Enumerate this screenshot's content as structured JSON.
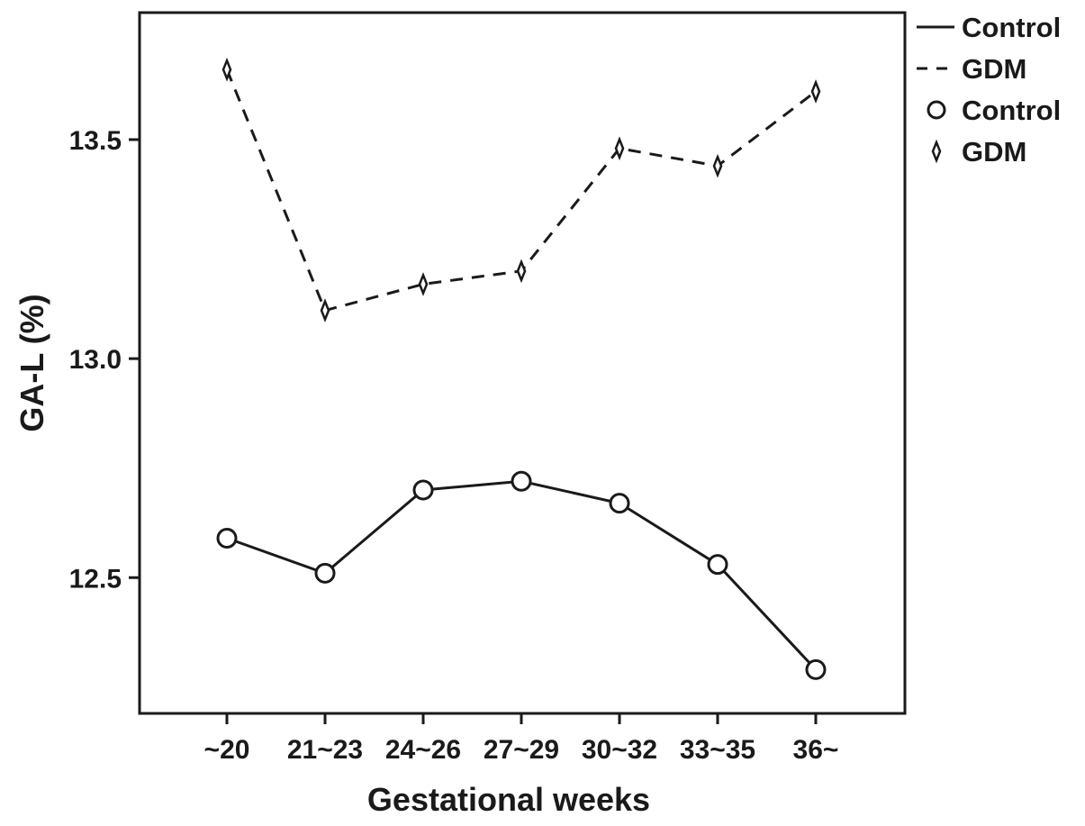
{
  "chart_data": {
    "type": "line",
    "xlabel": "Gestational weeks",
    "ylabel": "GA-L (%)",
    "categories": [
      "~20",
      "21~23",
      "24~26",
      "27~29",
      "30~32",
      "33~35",
      "36~"
    ],
    "ylim": [
      12.19,
      13.79
    ],
    "yticks": [
      "12.5",
      "13.0",
      "13.5"
    ],
    "ytick_values": [
      12.5,
      13.0,
      13.5
    ],
    "grid": false,
    "legend_position": "top-right, outside plot",
    "series": [
      {
        "name": "Control",
        "line_style": "solid",
        "marker": "circle",
        "color": "#1a1a1a",
        "values": [
          12.59,
          12.51,
          12.7,
          12.72,
          12.67,
          12.53,
          12.29
        ]
      },
      {
        "name": "GDM",
        "line_style": "dashed",
        "marker": "diamond",
        "color": "#1a1a1a",
        "values": [
          13.66,
          13.11,
          13.17,
          13.2,
          13.48,
          13.44,
          13.61
        ]
      }
    ],
    "legend": [
      {
        "label": "Control",
        "kind": "line",
        "series": "Control"
      },
      {
        "label": "GDM",
        "kind": "line",
        "series": "GDM"
      },
      {
        "label": "Control",
        "kind": "marker",
        "series": "Control"
      },
      {
        "label": "GDM",
        "kind": "marker",
        "series": "GDM"
      }
    ]
  }
}
